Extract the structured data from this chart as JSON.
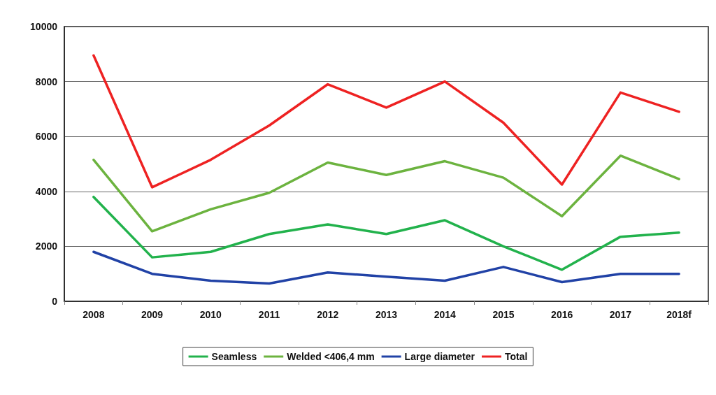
{
  "chart_data": {
    "type": "line",
    "categories": [
      "2008",
      "2009",
      "2010",
      "2011",
      "2012",
      "2013",
      "2014",
      "2015",
      "2016",
      "2017",
      "2018f"
    ],
    "series": [
      {
        "name": "Seamless",
        "color": "#22b24c",
        "values": [
          3800,
          1600,
          1800,
          2450,
          2800,
          2450,
          2950,
          2000,
          1150,
          2350,
          2500
        ]
      },
      {
        "name": "Welded <406,4 mm",
        "color": "#6cb33f",
        "values": [
          5150,
          2550,
          3350,
          3950,
          5050,
          4600,
          5100,
          4500,
          3100,
          5300,
          4450
        ]
      },
      {
        "name": "Large diameter",
        "color": "#2142a6",
        "values": [
          1800,
          1000,
          750,
          650,
          1050,
          900,
          750,
          1250,
          700,
          1000,
          1000
        ]
      },
      {
        "name": "Total",
        "color": "#ee2222",
        "values": [
          8950,
          4150,
          5150,
          6400,
          7900,
          7050,
          8000,
          6500,
          4250,
          7600,
          6900
        ]
      }
    ],
    "ylim": [
      0,
      10000
    ],
    "yticks": [
      0,
      2000,
      4000,
      6000,
      8000,
      10000
    ],
    "grid": "y",
    "legend": "bottom",
    "marker": "none",
    "line_style": "solid"
  }
}
